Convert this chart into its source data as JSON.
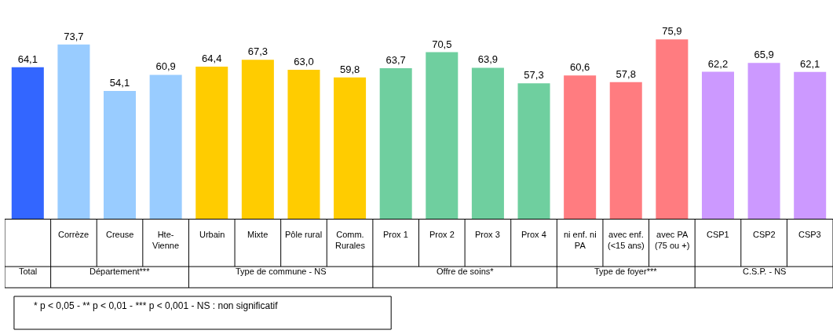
{
  "chart_data": {
    "type": "bar",
    "categories": [
      null,
      "Corrèze",
      "Creuse",
      "Hte-\nVienne",
      "Urbain",
      "Mixte",
      "Pôle rural",
      "Comm.\nRurales",
      "Prox 1",
      "Prox 2",
      "Prox 3",
      "Prox 4",
      "ni enf. ni\nPA",
      "avec enf.\n(<15 ans)",
      "avec PA\n(75 ou +)",
      "CSP1",
      "CSP2",
      "CSP3"
    ],
    "values": [
      64.1,
      73.7,
      54.1,
      60.9,
      64.4,
      67.3,
      63.0,
      59.8,
      63.7,
      70.5,
      63.9,
      57.3,
      60.6,
      57.8,
      75.9,
      62.2,
      65.9,
      62.1
    ],
    "colors": [
      "#3366ff",
      "#99ccff",
      "#99ccff",
      "#99ccff",
      "#ffcc00",
      "#ffcc00",
      "#ffcc00",
      "#ffcc00",
      "#6fcf9f",
      "#6fcf9f",
      "#6fcf9f",
      "#6fcf9f",
      "#ff7c80",
      "#ff7c80",
      "#ff7c80",
      "#cc99ff",
      "#cc99ff",
      "#cc99ff"
    ],
    "value_labels": [
      "64,1",
      "73,7",
      "54,1",
      "60,9",
      "64,4",
      "67,3",
      "63,0",
      "59,8",
      "63,7",
      "70,5",
      "63,9",
      "57,3",
      "60,6",
      "57,8",
      "75,9",
      "62,2",
      "65,9",
      "62,1"
    ],
    "annotations": [
      "Total",
      "Département***",
      "Type de commune - NS",
      "Offre de soins*",
      "Type de foyer***",
      "C.S.P. - NS",
      "* p < 0,05 - ** p < 0,01 - *** p < 0,001 - NS : non significatif"
    ]
  }
}
